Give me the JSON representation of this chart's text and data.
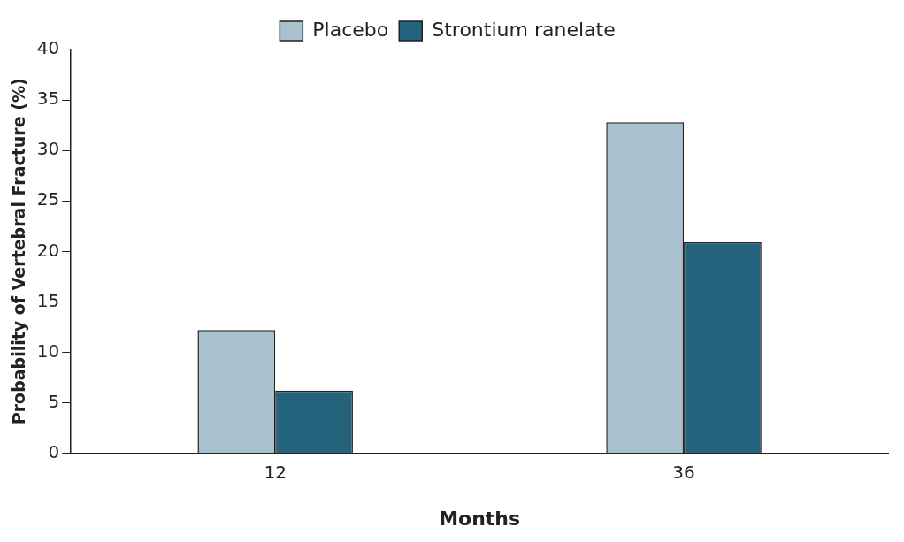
{
  "chart_data": {
    "type": "bar",
    "xlabel": "Months",
    "ylabel": "Probability of Vertebral Fracture (%)",
    "categories": [
      "12",
      "36"
    ],
    "series": [
      {
        "name": "Placebo",
        "color": "#a9c0cf",
        "values": [
          12.2,
          32.8
        ]
      },
      {
        "name": "Strontium ranelate",
        "color": "#24637c",
        "values": [
          6.2,
          20.9
        ]
      }
    ],
    "ylim": [
      0,
      40
    ],
    "yticks": [
      0,
      5,
      10,
      15,
      20,
      25,
      30,
      35,
      40
    ],
    "grid": false,
    "legend": "top"
  }
}
